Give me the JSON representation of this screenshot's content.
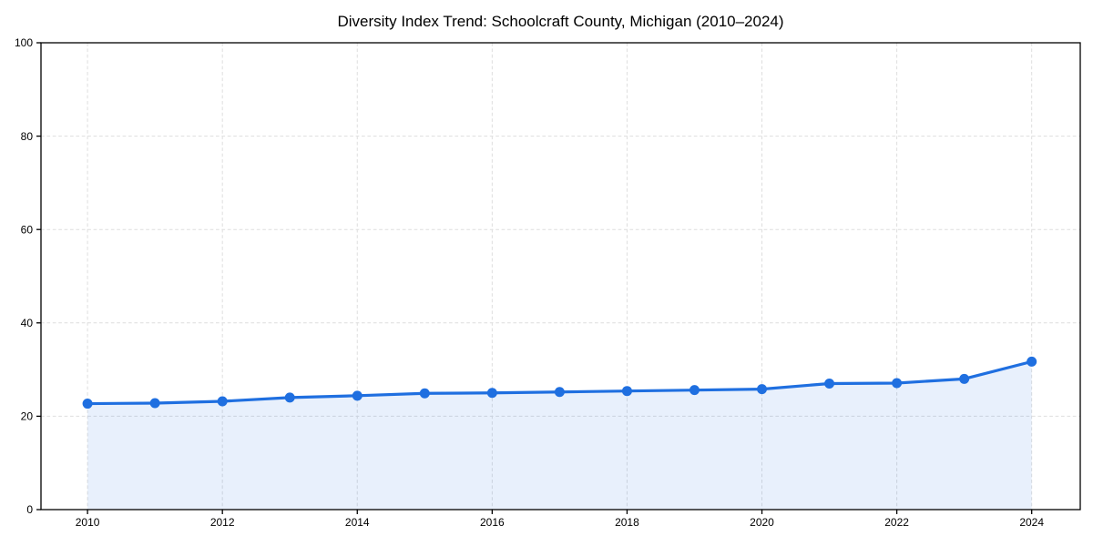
{
  "title": "Diversity Index Trend: Schoolcraft County, Michigan (2010–2024)",
  "chart_data": {
    "type": "line",
    "title": "Diversity Index Trend: Schoolcraft County, Michigan (2010–2024)",
    "series": [
      {
        "name": "Diversity Index",
        "x": [
          2010,
          2011,
          2012,
          2013,
          2014,
          2015,
          2016,
          2017,
          2018,
          2019,
          2020,
          2021,
          2022,
          2023,
          2024
        ],
        "values": [
          22.7,
          22.8,
          23.2,
          24.0,
          24.4,
          24.9,
          25.0,
          25.2,
          25.4,
          25.6,
          25.8,
          27.0,
          27.1,
          28.0,
          31.7
        ]
      }
    ],
    "xlabel": "",
    "ylabel": "",
    "xticks": [
      2010,
      2012,
      2014,
      2016,
      2018,
      2020,
      2022,
      2024
    ],
    "yticks": [
      0,
      20,
      40,
      60,
      80,
      100
    ],
    "ylim": [
      0,
      100
    ],
    "xlim": [
      2009.31,
      2024.72
    ],
    "grid": "dashed",
    "legend": "none",
    "marker": "circle",
    "area_fill": true,
    "colors": {
      "line": "#1f6fe0",
      "marker": "#1f6fe0",
      "fill": "rgba(31,111,224,0.10)",
      "grid": "#dedede",
      "axis": "#000000",
      "background": "#ffffff"
    }
  }
}
